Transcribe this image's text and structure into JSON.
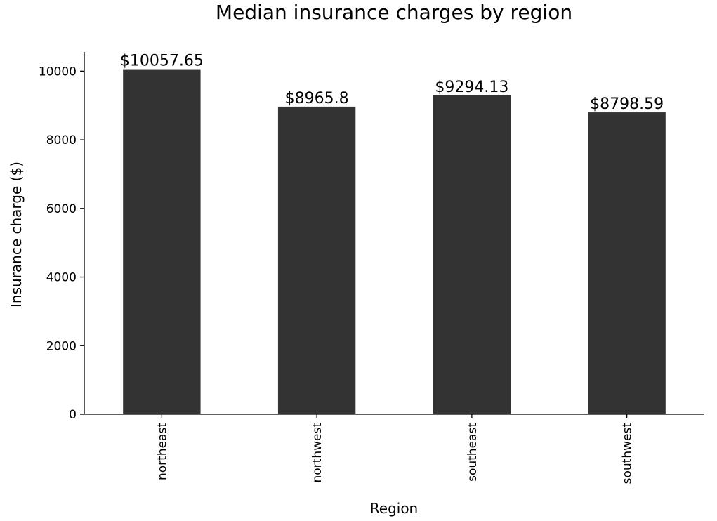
{
  "chart_data": {
    "type": "bar",
    "title": "Median insurance charges by region",
    "xlabel": "Region",
    "ylabel": "Insurance charge ($)",
    "categories": [
      "northeast",
      "northwest",
      "southeast",
      "southwest"
    ],
    "values": [
      10057.65,
      8965.8,
      9294.13,
      8798.59
    ],
    "data_labels": [
      "$10057.65",
      "$8965.8",
      "$9294.13",
      "$8798.59"
    ],
    "yticks": [
      0,
      2000,
      4000,
      6000,
      8000,
      10000
    ],
    "ytick_labels": [
      "0",
      "2000",
      "4000",
      "6000",
      "8000",
      "10000"
    ],
    "ylim": [
      0,
      10560
    ],
    "grid": false,
    "legend": "none",
    "bar_color": "#333333",
    "x_tick_rotation": "vertical"
  }
}
